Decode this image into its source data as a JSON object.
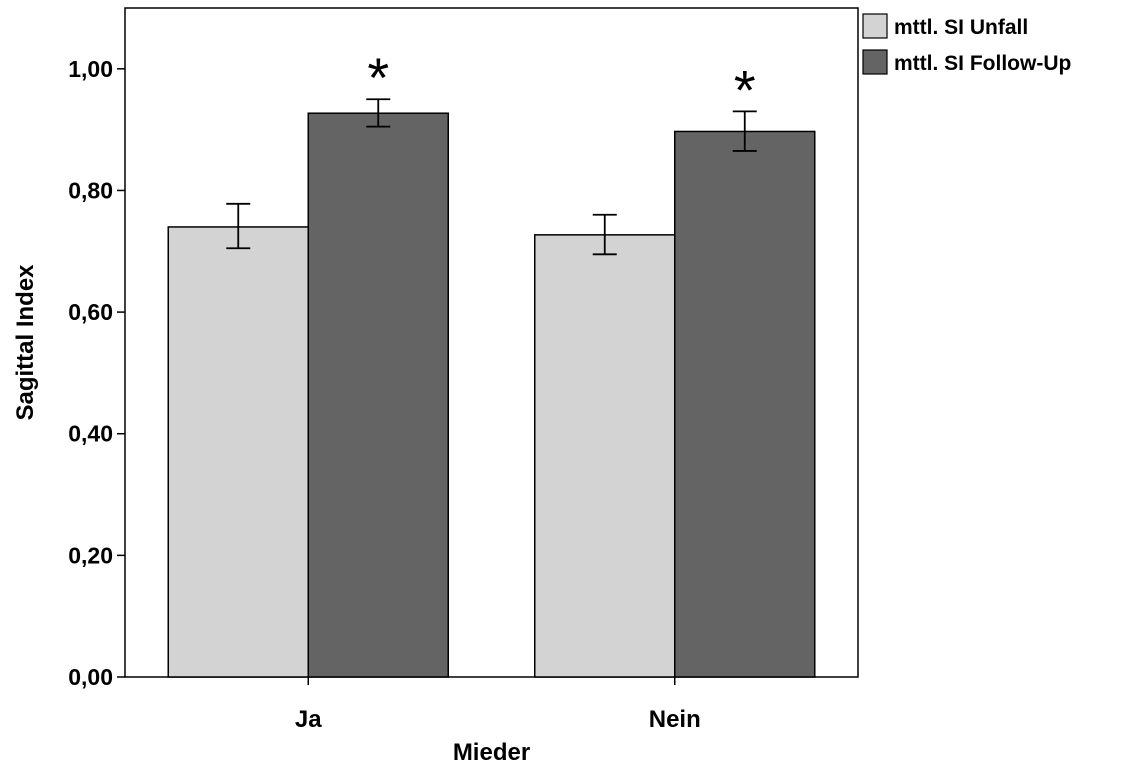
{
  "chart_data": {
    "type": "bar",
    "xlabel": "Mieder",
    "ylabel": "Sagittal Index",
    "categories": [
      "Ja",
      "Nein"
    ],
    "ylim": [
      0,
      1.1
    ],
    "yticks": [
      "0,00",
      "0,20",
      "0,40",
      "0,60",
      "0,80",
      "1,00"
    ],
    "ytick_values": [
      0,
      0.2,
      0.4,
      0.6,
      0.8,
      1.0
    ],
    "series": [
      {
        "name": "mttl. SI Unfall",
        "color": "#d3d3d3",
        "values": [
          0.74,
          0.727
        ],
        "error_low": [
          0.705,
          0.695
        ],
        "error_high": [
          0.778,
          0.76
        ]
      },
      {
        "name": "mttl. SI Follow-Up",
        "color": "#646464",
        "values": [
          0.927,
          0.897
        ],
        "error_low": [
          0.905,
          0.865
        ],
        "error_high": [
          0.95,
          0.93
        ]
      }
    ],
    "annotations": [
      {
        "category": "Ja",
        "series": "mttl. SI Follow-Up",
        "text": "*"
      },
      {
        "category": "Nein",
        "series": "mttl. SI Follow-Up",
        "text": "*"
      }
    ],
    "legend_position": "top-right",
    "grid": false
  }
}
